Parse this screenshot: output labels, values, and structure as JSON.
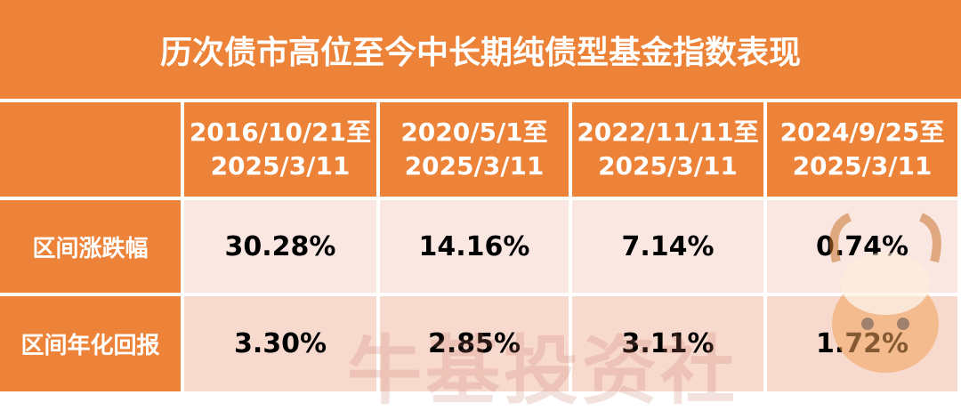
{
  "title": "历次债市高位至今中长期纯债型基金指数表现",
  "table": {
    "header": [
      [
        "2016/10/21至",
        "2025/3/11"
      ],
      [
        "2020/5/1至",
        "2025/3/11"
      ],
      [
        "2022/11/11至",
        "2025/3/11"
      ],
      [
        "2024/9/25至",
        "2025/3/11"
      ]
    ],
    "rows": [
      {
        "label": "区间涨跌幅",
        "cells": [
          "30.28%",
          "14.16%",
          "7.14%",
          "0.74%"
        ]
      },
      {
        "label": "区间年化回报",
        "cells": [
          "3.30%",
          "2.85%",
          "3.11%",
          "1.72%"
        ]
      }
    ]
  },
  "watermark": "牛基投资社"
}
